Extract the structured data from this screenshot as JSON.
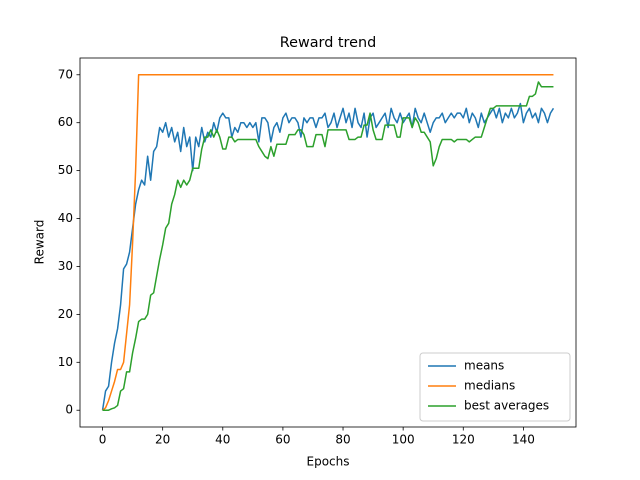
{
  "chart_data": {
    "type": "line",
    "title": "Reward trend",
    "x_label": "Epochs",
    "y_label": "Reward",
    "x": [
      0,
      1,
      2,
      3,
      4,
      5,
      6,
      7,
      8,
      9,
      10,
      11,
      12,
      13,
      14,
      15,
      16,
      17,
      18,
      19,
      20,
      21,
      22,
      23,
      24,
      25,
      26,
      27,
      28,
      29,
      30,
      31,
      32,
      33,
      34,
      35,
      36,
      37,
      38,
      39,
      40,
      41,
      42,
      43,
      44,
      45,
      46,
      47,
      48,
      49,
      50,
      51,
      52,
      53,
      54,
      55,
      56,
      57,
      58,
      59,
      60,
      61,
      62,
      63,
      64,
      65,
      66,
      67,
      68,
      69,
      70,
      71,
      72,
      73,
      74,
      75,
      76,
      77,
      78,
      79,
      80,
      81,
      82,
      83,
      84,
      85,
      86,
      87,
      88,
      89,
      90,
      91,
      92,
      93,
      94,
      95,
      96,
      97,
      98,
      99,
      100,
      101,
      102,
      103,
      104,
      105,
      106,
      107,
      108,
      109,
      110,
      111,
      112,
      113,
      114,
      115,
      116,
      117,
      118,
      119,
      120,
      121,
      122,
      123,
      124,
      125,
      126,
      127,
      128,
      129,
      130,
      131,
      132,
      133,
      134,
      135,
      136,
      137,
      138,
      139,
      140,
      141,
      142,
      143,
      144,
      145,
      146,
      147,
      148,
      149,
      150
    ],
    "series": [
      {
        "name": "means",
        "color": "#1f77b4",
        "values": [
          0,
          4,
          5,
          10,
          14,
          17,
          22,
          29.5,
          30.5,
          33,
          38,
          43,
          46,
          48,
          47,
          53,
          48,
          54,
          55,
          59,
          58,
          60,
          57,
          59,
          56,
          58,
          54,
          59,
          55,
          57,
          50,
          57,
          55,
          59,
          56,
          58,
          57,
          60,
          58,
          61,
          62,
          61,
          61,
          57,
          59,
          58,
          60,
          60,
          59,
          60,
          59,
          60,
          56,
          61,
          61,
          60,
          56,
          59,
          60,
          58,
          61,
          62,
          60,
          61,
          61,
          60,
          57,
          61,
          60,
          61,
          61,
          59,
          61,
          61,
          62,
          59,
          60,
          62,
          59,
          61,
          63,
          60,
          62,
          59,
          63,
          60,
          59,
          62,
          57,
          61,
          62,
          59,
          60,
          61,
          62,
          59,
          63,
          61,
          60,
          62,
          60,
          61,
          62,
          59,
          63,
          61,
          60,
          62,
          60,
          58,
          60,
          61,
          61,
          62,
          60,
          61,
          62,
          61,
          62,
          62,
          61,
          63,
          60,
          62,
          61,
          59,
          62,
          60,
          61,
          62,
          63,
          61,
          63,
          60,
          62,
          61,
          63,
          61,
          62,
          64,
          60,
          62,
          63,
          61,
          62,
          60,
          63,
          62,
          60,
          62,
          63
        ]
      },
      {
        "name": "medians",
        "color": "#ff7f0e",
        "values": [
          0,
          0.5,
          2,
          4,
          6,
          8.5,
          8.5,
          10,
          16,
          22,
          35,
          50,
          70,
          70,
          70,
          70,
          70,
          70,
          70,
          70,
          70,
          70,
          70,
          70,
          70,
          70,
          70,
          70,
          70,
          70,
          70,
          70,
          70,
          70,
          70,
          70,
          70,
          70,
          70,
          70,
          70,
          70,
          70,
          70,
          70,
          70,
          70,
          70,
          70,
          70,
          70,
          70,
          70,
          70,
          70,
          70,
          70,
          70,
          70,
          70,
          70,
          70,
          70,
          70,
          70,
          70,
          70,
          70,
          70,
          70,
          70,
          70,
          70,
          70,
          70,
          70,
          70,
          70,
          70,
          70,
          70,
          70,
          70,
          70,
          70,
          70,
          70,
          70,
          70,
          70,
          70,
          70,
          70,
          70,
          70,
          70,
          70,
          70,
          70,
          70,
          70,
          70,
          70,
          70,
          70,
          70,
          70,
          70,
          70,
          70,
          70,
          70,
          70,
          70,
          70,
          70,
          70,
          70,
          70,
          70,
          70,
          70,
          70,
          70,
          70,
          70,
          70,
          70,
          70,
          70,
          70,
          70,
          70,
          70,
          70,
          70,
          70,
          70,
          70,
          70,
          70,
          70,
          70,
          70,
          70,
          70,
          70,
          70,
          70,
          70,
          70
        ]
      },
      {
        "name": "best averages",
        "color": "#2ca02c",
        "values": [
          0,
          0,
          0,
          0.3,
          0.5,
          1,
          4,
          4.5,
          8,
          8,
          12,
          15,
          18.5,
          19,
          19,
          20,
          24,
          24.5,
          28,
          31.5,
          34.5,
          38,
          39,
          43,
          45,
          48,
          46.5,
          48,
          47,
          48,
          50.5,
          50.5,
          50.5,
          54.5,
          57,
          57,
          58.5,
          57,
          58.5,
          57,
          54.5,
          54.5,
          57,
          57,
          56,
          56.5,
          56.5,
          56.5,
          56.5,
          56.5,
          56.5,
          56.5,
          55,
          54,
          53,
          52.5,
          55,
          53,
          55.5,
          55.5,
          55.5,
          55.5,
          57.5,
          57.5,
          57.5,
          58.5,
          58.5,
          57.5,
          55,
          55,
          55,
          57.5,
          57.5,
          57.5,
          55,
          58.5,
          58.5,
          58.5,
          58.5,
          58.5,
          58.5,
          58.5,
          56.5,
          56.5,
          56.5,
          57,
          57,
          59.5,
          59.5,
          62,
          58.5,
          56.5,
          56.5,
          56.5,
          59.5,
          59.5,
          59.5,
          59.5,
          57,
          57,
          61,
          61,
          61,
          59,
          61,
          60,
          58,
          58,
          57,
          56,
          51,
          52.5,
          55,
          56.5,
          56.5,
          56.5,
          56.5,
          56,
          56.5,
          56.5,
          56.5,
          56.5,
          56,
          56.5,
          57,
          57,
          57,
          59,
          61,
          63,
          63,
          63.5,
          63.5,
          63.5,
          63.5,
          63.5,
          63.5,
          63.5,
          63.5,
          63.5,
          63.5,
          63.5,
          65.5,
          65.5,
          66,
          68.5,
          67.5,
          67.5,
          67.5,
          67.5,
          67.5
        ]
      }
    ],
    "xlim": [
      -7.5,
      157.5
    ],
    "ylim": [
      -3.5,
      73.5
    ],
    "xticks": [
      0,
      20,
      40,
      60,
      80,
      100,
      120,
      140
    ],
    "yticks": [
      0,
      10,
      20,
      30,
      40,
      50,
      60,
      70
    ],
    "grid": false,
    "legend": "lower right"
  }
}
